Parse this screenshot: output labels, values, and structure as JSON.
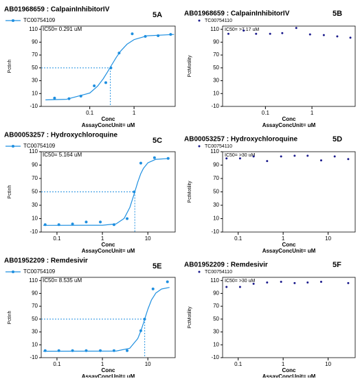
{
  "chart_data": [
    {
      "type": "scatter",
      "title": "AB01968659 : CalpainInhibitorIV",
      "panel_label": "5A",
      "ylabel": "PctInh",
      "xlabel": "Conc",
      "unit_label": "AssayConcUnit=   uM",
      "xscale": "log",
      "legend_marker": "line",
      "ic50": {
        "x": 0.291,
        "y": 50,
        "label": "IC50= 0.291 uM"
      },
      "series": [
        {
          "name": "TC00754109",
          "color": "#1e8fe0",
          "x": [
            0.016,
            0.034,
            0.063,
            0.126,
            0.23,
            0.3,
            0.46,
            0.91,
            1.8,
            3.5,
            6.7
          ],
          "values": [
            3,
            2,
            6,
            22,
            27,
            50,
            73,
            103,
            99,
            100,
            102
          ]
        }
      ],
      "fit": {
        "x": [
          0.01,
          0.03,
          0.1,
          0.15,
          0.2,
          0.25,
          0.3,
          0.4,
          0.5,
          0.7,
          1,
          2,
          8
        ],
        "values": [
          0.12,
          1.07,
          10.8,
          21.4,
          32.7,
          43.3,
          52.5,
          66.7,
          76.2,
          87,
          94,
          99.9,
          102
        ]
      },
      "xlim": [
        0.008,
        8.5
      ],
      "xticks": [
        0.1,
        1
      ],
      "ylim": [
        -10,
        115
      ],
      "yticks": [
        -10,
        10,
        30,
        50,
        70,
        90,
        110
      ]
    },
    {
      "type": "scatter",
      "title": "AB01968659 : CalpainInhibitorIV",
      "panel_label": "5B",
      "ylabel": "PctMotility",
      "xlabel": "Conc",
      "unit_label": "AssayConcUnit=   uM",
      "xscale": "log",
      "legend_marker": "dot",
      "annotation": "IC50= >7.17 uM",
      "series": [
        {
          "name": "TC00754110",
          "color": "#1a1a8c",
          "x": [
            0.016,
            0.034,
            0.063,
            0.126,
            0.23,
            0.46,
            0.91,
            1.8,
            3.5,
            6.7
          ],
          "values": [
            103,
            108,
            103,
            103,
            104,
            112,
            102,
            101,
            99,
            97
          ]
        }
      ],
      "xlim": [
        0.012,
        8.5
      ],
      "xticks": [
        0.1,
        1
      ],
      "ylim": [
        -10,
        115
      ],
      "yticks": [
        -10,
        10,
        30,
        50,
        70,
        90,
        110
      ]
    },
    {
      "type": "scatter",
      "title": "AB00053257 : Hydroxychloroquine",
      "panel_label": "5C",
      "ylabel": "PctInh",
      "xlabel": "Conc",
      "unit_label": "AssayConcUnit=   uM",
      "xscale": "log",
      "legend_marker": "line",
      "ic50": {
        "x": 5.164,
        "y": 50,
        "label": "IC50= 5.164 uM"
      },
      "series": [
        {
          "name": "TC00754109",
          "color": "#1e8fe0",
          "x": [
            0.055,
            0.11,
            0.22,
            0.44,
            0.9,
            1.8,
            3.5,
            5,
            7,
            14,
            28
          ],
          "values": [
            1,
            1,
            2,
            5,
            5,
            1,
            10,
            50,
            93,
            101,
            100
          ]
        }
      ],
      "fit": {
        "x": [
          0.05,
          1,
          2,
          3,
          4,
          5,
          5.164,
          6,
          7,
          8,
          10,
          15,
          30
        ],
        "values": [
          0,
          0.14,
          2.2,
          10.2,
          26.5,
          46.8,
          50,
          64.6,
          77.2,
          85.2,
          93.4,
          98.6,
          100
        ]
      },
      "xlim": [
        0.045,
        40
      ],
      "xticks": [
        0.1,
        1,
        10
      ],
      "ylim": [
        -10,
        110
      ],
      "yticks": [
        -10,
        10,
        30,
        50,
        70,
        90,
        110
      ]
    },
    {
      "type": "scatter",
      "title": "AB00053257 : Hydroxychloroquine",
      "panel_label": "5D",
      "ylabel": "PctMotility",
      "xlabel": "Conc",
      "unit_label": "AssayConcUnit=   uM",
      "xscale": "log",
      "legend_marker": "dot",
      "annotation": "IC50= >30 uM",
      "series": [
        {
          "name": "TC00754110",
          "color": "#1a1a8c",
          "x": [
            0.055,
            0.11,
            0.22,
            0.44,
            0.9,
            1.8,
            3.5,
            7,
            14,
            28
          ],
          "values": [
            100,
            100,
            103,
            96,
            103,
            104,
            104,
            97,
            103,
            99
          ]
        }
      ],
      "xlim": [
        0.045,
        40
      ],
      "xticks": [
        0.1,
        1,
        10
      ],
      "ylim": [
        -10,
        110
      ],
      "yticks": [
        -10,
        10,
        30,
        50,
        70,
        90,
        110
      ]
    },
    {
      "type": "scatter",
      "title": "AB01952209 : Remdesivir",
      "panel_label": "5E",
      "ylabel": "PctInh",
      "xlabel": "Conc",
      "unit_label": "AssayConcUnit=   uM",
      "xscale": "log",
      "legend_marker": "line",
      "ic50": {
        "x": 8.535,
        "y": 50,
        "label": "IC50= 8.535 uM"
      },
      "series": [
        {
          "name": "TC00754109",
          "color": "#1e8fe0",
          "x": [
            0.055,
            0.11,
            0.22,
            0.44,
            0.9,
            1.8,
            3.5,
            7,
            8.5,
            13,
            27
          ],
          "values": [
            1,
            1,
            1,
            1,
            1,
            1,
            1,
            32,
            50,
            97,
            108
          ]
        }
      ],
      "fit": {
        "x": [
          0.05,
          2,
          4,
          6,
          7,
          8,
          8.535,
          10,
          12,
          15,
          20,
          30
        ],
        "values": [
          0,
          0.3,
          4.6,
          19.6,
          31.2,
          43.6,
          50,
          65.3,
          79.6,
          90.5,
          96.8,
          99.3
        ]
      },
      "xlim": [
        0.045,
        40
      ],
      "xticks": [
        0.1,
        1,
        10
      ],
      "ylim": [
        -10,
        115
      ],
      "yticks": [
        -10,
        10,
        30,
        50,
        70,
        90,
        110
      ]
    },
    {
      "type": "scatter",
      "title": "AB01952209 : Remdesivir",
      "panel_label": "5F",
      "ylabel": "PctMotility",
      "xlabel": "Conc",
      "unit_label": "AssayConcUnit=   uM",
      "xscale": "log",
      "legend_marker": "dot",
      "annotation": "IC50= >30 uM",
      "series": [
        {
          "name": "TC00754110",
          "color": "#1a1a8c",
          "x": [
            0.055,
            0.11,
            0.22,
            0.44,
            0.9,
            1.8,
            3.5,
            7,
            28
          ],
          "values": [
            100,
            100,
            105,
            107,
            108,
            106,
            107,
            108,
            106
          ]
        }
      ],
      "xlim": [
        0.045,
        40
      ],
      "xticks": [
        0.1,
        1,
        10
      ],
      "ylim": [
        -10,
        115
      ],
      "yticks": [
        -10,
        10,
        30,
        50,
        70,
        90,
        110
      ]
    }
  ]
}
